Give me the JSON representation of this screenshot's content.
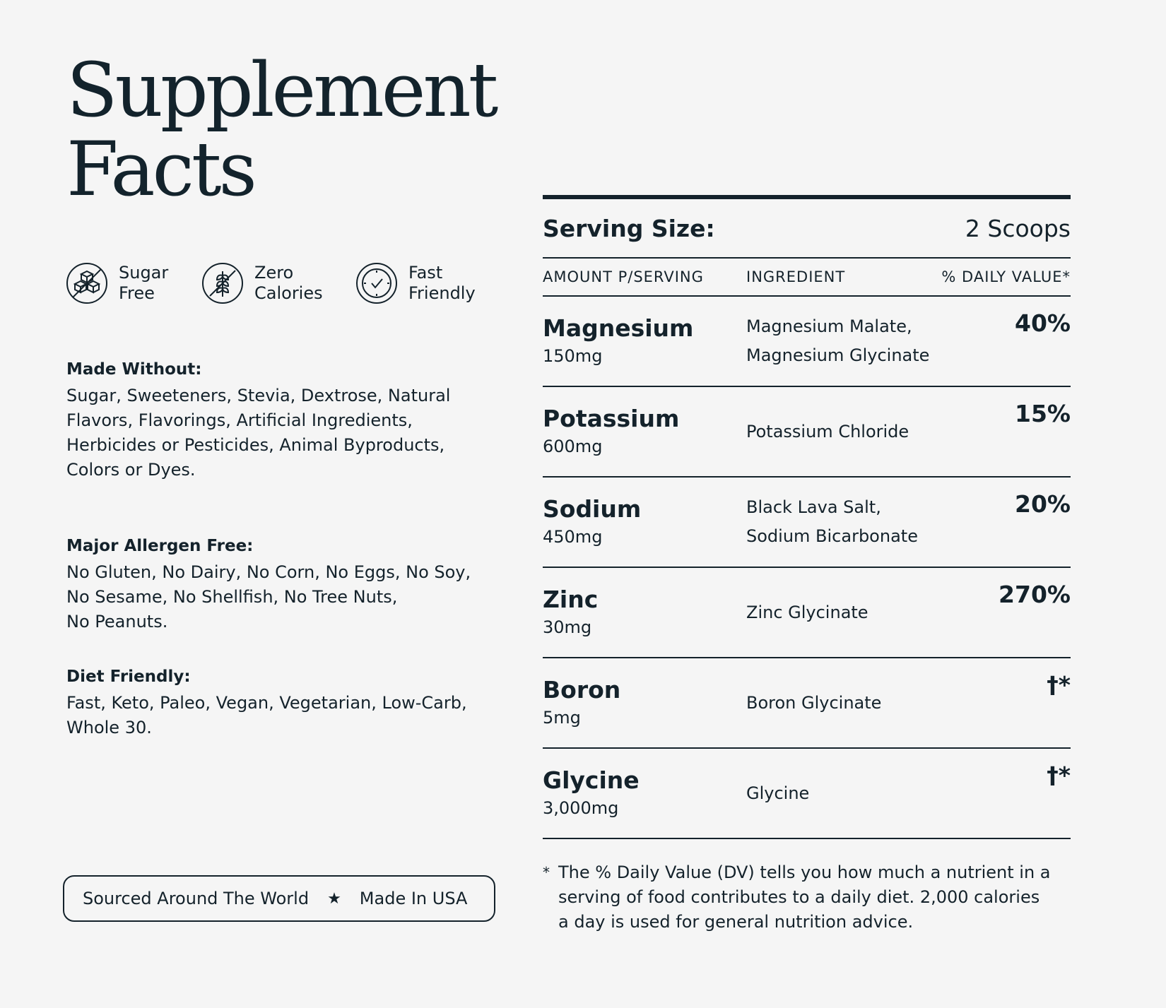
{
  "title": {
    "line1": "Supplement",
    "line2": "Facts"
  },
  "badges": [
    {
      "icon": "sugar-cubes-icon",
      "line1": "Sugar",
      "line2": "Free"
    },
    {
      "icon": "wheat-slash-icon",
      "line1": "Zero",
      "line2": "Calories"
    },
    {
      "icon": "clock-icon",
      "line1": "Fast",
      "line2": "Friendly"
    }
  ],
  "made_without": {
    "heading": "Made Without:",
    "lines": [
      "Sugar, Sweeteners, Stevia, Dextrose, Natural",
      "Flavors, Flavorings, Artificial Ingredients,",
      "Herbicides or Pesticides, Animal Byproducts,",
      "Colors or Dyes."
    ]
  },
  "allergen": {
    "heading": "Major Allergen Free:",
    "lines": [
      "No Gluten, No Dairy, No Corn, No Eggs, No Soy,",
      "No Sesame, No Shellfish, No Tree Nuts,",
      "No Peanuts."
    ]
  },
  "diet": {
    "heading": "Diet Friendly:",
    "lines": [
      "Fast, Keto, Paleo, Vegan, Vegetarian, Low-Carb,",
      "Whole 30."
    ]
  },
  "pill": {
    "left": "Sourced Around The World",
    "star": "★",
    "right": "Made In USA"
  },
  "facts": {
    "serving_label": "Serving Size:",
    "serving_value": "2 Scoops",
    "headers": {
      "amount": "AMOUNT P/SERVING",
      "ingredient": "INGREDIENT",
      "dv": "% DAILY VALUE*"
    },
    "rows": [
      {
        "name": "Magnesium",
        "amount": "150mg",
        "ingredients": [
          "Magnesium Malate,",
          "Magnesium Glycinate"
        ],
        "dv": "40%"
      },
      {
        "name": "Potassium",
        "amount": "600mg",
        "ingredients": [
          "Potassium Chloride"
        ],
        "dv": "15%"
      },
      {
        "name": "Sodium",
        "amount": "450mg",
        "ingredients": [
          "Black Lava Salt,",
          "Sodium Bicarbonate"
        ],
        "dv": "20%"
      },
      {
        "name": "Zinc",
        "amount": "30mg",
        "ingredients": [
          "Zinc Glycinate"
        ],
        "dv": "270%"
      },
      {
        "name": "Boron",
        "amount": "5mg",
        "ingredients": [
          "Boron Glycinate"
        ],
        "dv": "†*"
      },
      {
        "name": "Glycine",
        "amount": "3,000mg",
        "ingredients": [
          "Glycine"
        ],
        "dv": "†*"
      }
    ],
    "footnote_marker": "*",
    "footnote_lines": [
      "The % Daily Value (DV) tells you how much a nutrient in a",
      "serving of food contributes to a daily diet. 2,000 calories",
      "a day is used for general nutrition advice."
    ]
  },
  "colors": {
    "background": "#f5f5f5",
    "ink": "#14222b"
  }
}
